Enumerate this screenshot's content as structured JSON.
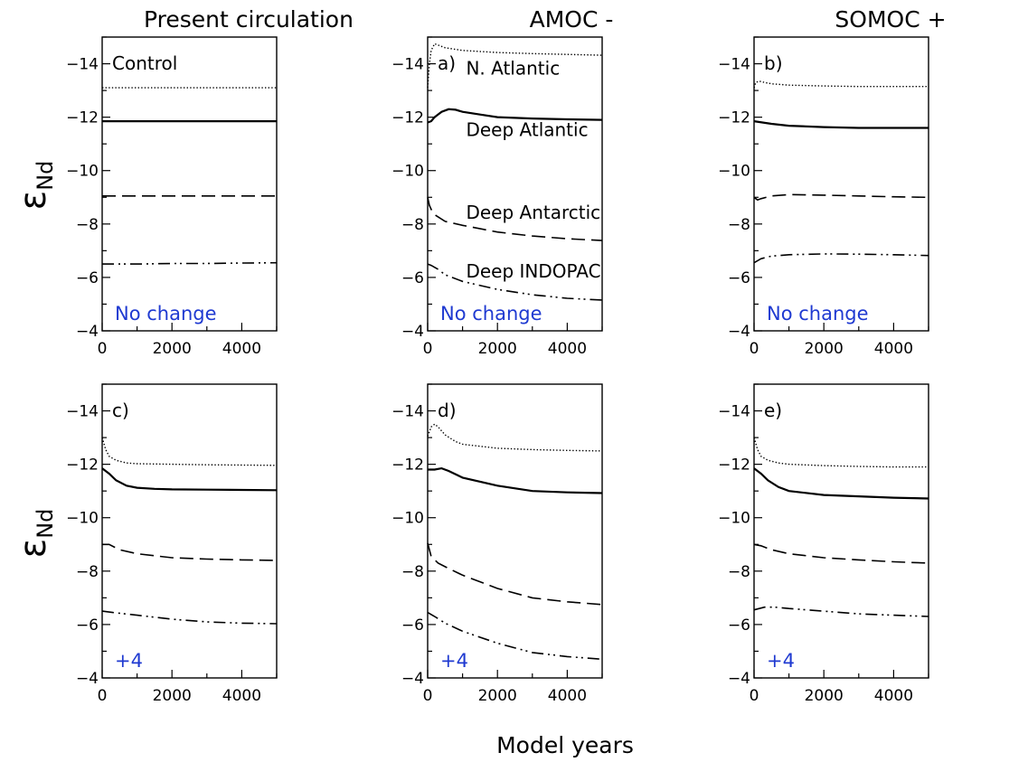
{
  "figure": {
    "column_titles": [
      "Present circulation",
      "AMOC -",
      "SOMOC +"
    ],
    "ylabel_main": "ε",
    "ylabel_sub": "Nd",
    "xlabel": "Model years",
    "note_color": "#1f3ad1",
    "line_color": "#000000"
  },
  "chart_data": [
    {
      "type": "line",
      "panel": "top-left",
      "label": "Control",
      "note": "No change",
      "xlim": [
        0,
        5000
      ],
      "ylim": [
        -15,
        -4
      ],
      "y_inverted": true,
      "xticks": [
        0,
        2000,
        4000
      ],
      "yticks": [
        -14,
        -12,
        -10,
        -8,
        -6,
        -4
      ],
      "series_labels": [],
      "series": [
        {
          "style": "dotted",
          "x": [
            0,
            1000,
            2000,
            3000,
            4000,
            5000
          ],
          "values": [
            -13.1,
            -13.1,
            -13.1,
            -13.1,
            -13.1,
            -13.1
          ]
        },
        {
          "style": "solid",
          "x": [
            0,
            1000,
            2000,
            3000,
            4000,
            5000
          ],
          "values": [
            -11.85,
            -11.85,
            -11.85,
            -11.85,
            -11.85,
            -11.85
          ]
        },
        {
          "style": "dashed",
          "x": [
            0,
            1000,
            2000,
            3000,
            4000,
            5000
          ],
          "values": [
            -9.05,
            -9.05,
            -9.05,
            -9.05,
            -9.05,
            -9.05
          ]
        },
        {
          "style": "dashdotdot",
          "x": [
            0,
            1000,
            2000,
            3000,
            4000,
            5000
          ],
          "values": [
            -6.5,
            -6.5,
            -6.52,
            -6.52,
            -6.54,
            -6.55
          ]
        }
      ]
    },
    {
      "type": "line",
      "panel": "top-middle",
      "label": "a)",
      "note": "No change",
      "xlim": [
        0,
        5000
      ],
      "ylim": [
        -15,
        -4
      ],
      "y_inverted": true,
      "xticks": [
        0,
        2000,
        4000
      ],
      "yticks": [
        -14,
        -12,
        -10,
        -8,
        -6,
        -4
      ],
      "series_labels": [
        "N. Atlantic",
        "Deep Atlantic",
        "Deep Antarctic",
        "Deep INDOPAC"
      ],
      "series": [
        {
          "style": "dotted",
          "x": [
            0,
            50,
            100,
            200,
            300,
            500,
            1000,
            2000,
            3000,
            4000,
            5000
          ],
          "values": [
            -13.1,
            -14.0,
            -14.5,
            -14.75,
            -14.7,
            -14.6,
            -14.5,
            -14.42,
            -14.38,
            -14.35,
            -14.32
          ]
        },
        {
          "style": "solid",
          "x": [
            0,
            100,
            200,
            400,
            600,
            800,
            1000,
            1500,
            2000,
            3000,
            4000,
            5000
          ],
          "values": [
            -11.8,
            -11.85,
            -12.0,
            -12.2,
            -12.3,
            -12.28,
            -12.2,
            -12.1,
            -12.0,
            -11.95,
            -11.92,
            -11.9
          ]
        },
        {
          "style": "dashed",
          "x": [
            0,
            50,
            100,
            200,
            500,
            1000,
            2000,
            3000,
            4000,
            5000
          ],
          "values": [
            -9.0,
            -8.7,
            -8.55,
            -8.35,
            -8.1,
            -7.95,
            -7.7,
            -7.55,
            -7.45,
            -7.38
          ]
        },
        {
          "style": "dashdotdot",
          "x": [
            0,
            100,
            300,
            500,
            1000,
            2000,
            3000,
            4000,
            5000
          ],
          "values": [
            -6.5,
            -6.45,
            -6.3,
            -6.1,
            -5.85,
            -5.55,
            -5.35,
            -5.22,
            -5.15
          ]
        }
      ]
    },
    {
      "type": "line",
      "panel": "top-right",
      "label": "b)",
      "note": "No change",
      "xlim": [
        0,
        5000
      ],
      "ylim": [
        -15,
        -4
      ],
      "y_inverted": true,
      "xticks": [
        0,
        2000,
        4000
      ],
      "yticks": [
        -14,
        -12,
        -10,
        -8,
        -6,
        -4
      ],
      "series_labels": [],
      "series": [
        {
          "style": "dotted",
          "x": [
            0,
            50,
            150,
            300,
            500,
            1000,
            2000,
            3000,
            4000,
            5000
          ],
          "values": [
            -13.1,
            -13.3,
            -13.35,
            -13.3,
            -13.25,
            -13.2,
            -13.17,
            -13.15,
            -13.15,
            -13.15
          ]
        },
        {
          "style": "solid",
          "x": [
            0,
            500,
            1000,
            2000,
            3000,
            4000,
            5000
          ],
          "values": [
            -11.85,
            -11.75,
            -11.68,
            -11.63,
            -11.6,
            -11.6,
            -11.6
          ]
        },
        {
          "style": "dashed",
          "x": [
            0,
            100,
            200,
            500,
            1000,
            2000,
            3000,
            4000,
            5000
          ],
          "values": [
            -9.0,
            -8.9,
            -8.95,
            -9.05,
            -9.1,
            -9.08,
            -9.05,
            -9.02,
            -9.0
          ]
        },
        {
          "style": "dashdotdot",
          "x": [
            0,
            200,
            500,
            1000,
            2000,
            3000,
            4000,
            5000
          ],
          "values": [
            -6.55,
            -6.7,
            -6.8,
            -6.85,
            -6.88,
            -6.87,
            -6.85,
            -6.82
          ]
        }
      ]
    },
    {
      "type": "line",
      "panel": "bottom-left",
      "label": "c)",
      "note": "+4",
      "xlim": [
        0,
        5000
      ],
      "ylim": [
        -15,
        -4
      ],
      "y_inverted": true,
      "xticks": [
        0,
        2000,
        4000
      ],
      "yticks": [
        -14,
        -12,
        -10,
        -8,
        -6,
        -4
      ],
      "series_labels": [],
      "series": [
        {
          "style": "dotted",
          "x": [
            0,
            100,
            200,
            400,
            700,
            1000,
            2000,
            3000,
            4000,
            5000
          ],
          "values": [
            -13.0,
            -12.55,
            -12.3,
            -12.15,
            -12.05,
            -12.02,
            -12.0,
            -11.98,
            -11.97,
            -11.96
          ]
        },
        {
          "style": "solid",
          "x": [
            0,
            200,
            400,
            700,
            1000,
            1500,
            2000,
            3000,
            4000,
            5000
          ],
          "values": [
            -11.85,
            -11.65,
            -11.4,
            -11.2,
            -11.12,
            -11.08,
            -11.06,
            -11.05,
            -11.04,
            -11.03
          ]
        },
        {
          "style": "dashed",
          "x": [
            0,
            200,
            500,
            1000,
            2000,
            3000,
            4000,
            5000
          ],
          "values": [
            -9.0,
            -9.0,
            -8.8,
            -8.65,
            -8.5,
            -8.45,
            -8.42,
            -8.4
          ]
        },
        {
          "style": "dashdotdot",
          "x": [
            0,
            300,
            1000,
            2000,
            3000,
            4000,
            5000
          ],
          "values": [
            -6.5,
            -6.45,
            -6.35,
            -6.2,
            -6.1,
            -6.05,
            -6.03
          ]
        }
      ]
    },
    {
      "type": "line",
      "panel": "bottom-middle",
      "label": "d)",
      "note": "+4",
      "xlim": [
        0,
        5000
      ],
      "ylim": [
        -15,
        -4
      ],
      "y_inverted": true,
      "xticks": [
        0,
        2000,
        4000
      ],
      "yticks": [
        -14,
        -12,
        -10,
        -8,
        -6,
        -4
      ],
      "series_labels": [],
      "series": [
        {
          "style": "dotted",
          "x": [
            0,
            100,
            200,
            300,
            500,
            800,
            1000,
            2000,
            3000,
            4000,
            5000
          ],
          "values": [
            -13.05,
            -13.4,
            -13.5,
            -13.4,
            -13.1,
            -12.85,
            -12.75,
            -12.6,
            -12.55,
            -12.52,
            -12.5
          ]
        },
        {
          "style": "solid",
          "x": [
            0,
            200,
            400,
            600,
            1000,
            2000,
            3000,
            4000,
            5000
          ],
          "values": [
            -11.8,
            -11.8,
            -11.85,
            -11.75,
            -11.5,
            -11.2,
            -11.0,
            -10.95,
            -10.92
          ]
        },
        {
          "style": "dashed",
          "x": [
            0,
            100,
            300,
            600,
            1000,
            2000,
            3000,
            4000,
            5000
          ],
          "values": [
            -9.05,
            -8.55,
            -8.3,
            -8.1,
            -7.85,
            -7.35,
            -7.0,
            -6.85,
            -6.75
          ]
        },
        {
          "style": "dashdotdot",
          "x": [
            0,
            200,
            500,
            1000,
            2000,
            3000,
            4000,
            5000
          ],
          "values": [
            -6.45,
            -6.3,
            -6.05,
            -5.75,
            -5.3,
            -4.95,
            -4.8,
            -4.7
          ]
        }
      ]
    },
    {
      "type": "line",
      "panel": "bottom-right",
      "label": "e)",
      "note": "+4",
      "xlim": [
        0,
        5000
      ],
      "ylim": [
        -15,
        -4
      ],
      "y_inverted": true,
      "xticks": [
        0,
        2000,
        4000
      ],
      "yticks": [
        -14,
        -12,
        -10,
        -8,
        -6,
        -4
      ],
      "series_labels": [],
      "series": [
        {
          "style": "dotted",
          "x": [
            0,
            100,
            200,
            400,
            700,
            1000,
            2000,
            3000,
            4000,
            5000
          ],
          "values": [
            -13.0,
            -12.55,
            -12.3,
            -12.15,
            -12.05,
            -12.0,
            -11.95,
            -11.92,
            -11.9,
            -11.9
          ]
        },
        {
          "style": "solid",
          "x": [
            0,
            200,
            400,
            700,
            1000,
            2000,
            3000,
            4000,
            5000
          ],
          "values": [
            -11.85,
            -11.65,
            -11.4,
            -11.15,
            -11.0,
            -10.85,
            -10.8,
            -10.75,
            -10.72
          ]
        },
        {
          "style": "dashed",
          "x": [
            0,
            200,
            500,
            1000,
            2000,
            3000,
            4000,
            5000
          ],
          "values": [
            -9.0,
            -8.95,
            -8.8,
            -8.65,
            -8.5,
            -8.42,
            -8.35,
            -8.3
          ]
        },
        {
          "style": "dashdotdot",
          "x": [
            0,
            300,
            600,
            1000,
            2000,
            3000,
            4000,
            5000
          ],
          "values": [
            -6.55,
            -6.65,
            -6.65,
            -6.6,
            -6.5,
            -6.4,
            -6.35,
            -6.3
          ]
        }
      ]
    }
  ]
}
